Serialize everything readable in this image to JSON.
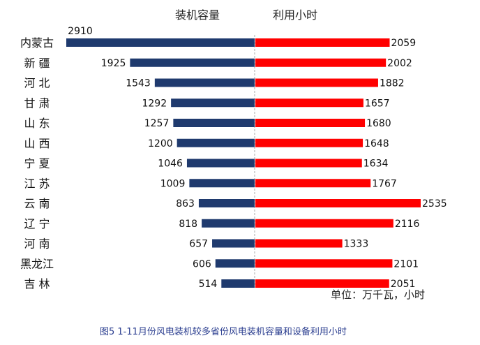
{
  "chart_data": {
    "type": "bar",
    "orientation": "horizontal-butterfly",
    "categories": [
      "内蒙古",
      "新 疆",
      "河 北",
      "甘 肃",
      "山 东",
      "山 西",
      "宁 夏",
      "江 苏",
      "云 南",
      "辽 宁",
      "河 南",
      "黑龙江",
      "吉 林"
    ],
    "series": [
      {
        "name": "装机容量",
        "color": "#1f3a6e",
        "values": [
          2910,
          1925,
          1543,
          1292,
          1257,
          1200,
          1046,
          1009,
          863,
          818,
          657,
          606,
          514
        ]
      },
      {
        "name": "利用小时",
        "color": "#ff0000",
        "values": [
          2059,
          2002,
          1882,
          1657,
          1680,
          1648,
          1634,
          1767,
          2535,
          2116,
          1333,
          2101,
          2051
        ]
      }
    ],
    "unit_label": "单位：万千瓦，小时",
    "title": "图5   1-11月份风电装机较多省份风电装机容量和设备利用小时"
  }
}
